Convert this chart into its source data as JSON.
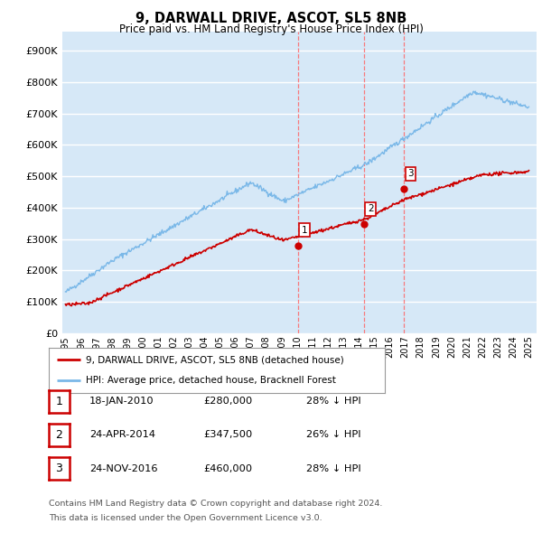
{
  "title": "9, DARWALL DRIVE, ASCOT, SL5 8NB",
  "subtitle": "Price paid vs. HM Land Registry's House Price Index (HPI)",
  "ylabel_ticks": [
    "£0",
    "£100K",
    "£200K",
    "£300K",
    "£400K",
    "£500K",
    "£600K",
    "£700K",
    "£800K",
    "£900K"
  ],
  "ytick_values": [
    0,
    100000,
    200000,
    300000,
    400000,
    500000,
    600000,
    700000,
    800000,
    900000
  ],
  "ylim": [
    0,
    960000
  ],
  "xlim_start": 1994.8,
  "xlim_end": 2025.5,
  "plot_bg_color": "#d6e8f7",
  "grid_color": "#ffffff",
  "hpi_line_color": "#7ab8e8",
  "price_line_color": "#cc0000",
  "vline_color": "#ff6666",
  "sale_points": [
    {
      "date": 2010.05,
      "price": 280000,
      "label": "1"
    },
    {
      "date": 2014.32,
      "price": 347500,
      "label": "2"
    },
    {
      "date": 2016.9,
      "price": 460000,
      "label": "3"
    }
  ],
  "legend_line1": "9, DARWALL DRIVE, ASCOT, SL5 8NB (detached house)",
  "legend_line2": "HPI: Average price, detached house, Bracknell Forest",
  "table_rows": [
    {
      "num": "1",
      "date": "18-JAN-2010",
      "price": "£280,000",
      "pct": "28% ↓ HPI"
    },
    {
      "num": "2",
      "date": "24-APR-2014",
      "price": "£347,500",
      "pct": "26% ↓ HPI"
    },
    {
      "num": "3",
      "date": "24-NOV-2016",
      "price": "£460,000",
      "pct": "28% ↓ HPI"
    }
  ],
  "footnote1": "Contains HM Land Registry data © Crown copyright and database right 2024.",
  "footnote2": "This data is licensed under the Open Government Licence v3.0."
}
